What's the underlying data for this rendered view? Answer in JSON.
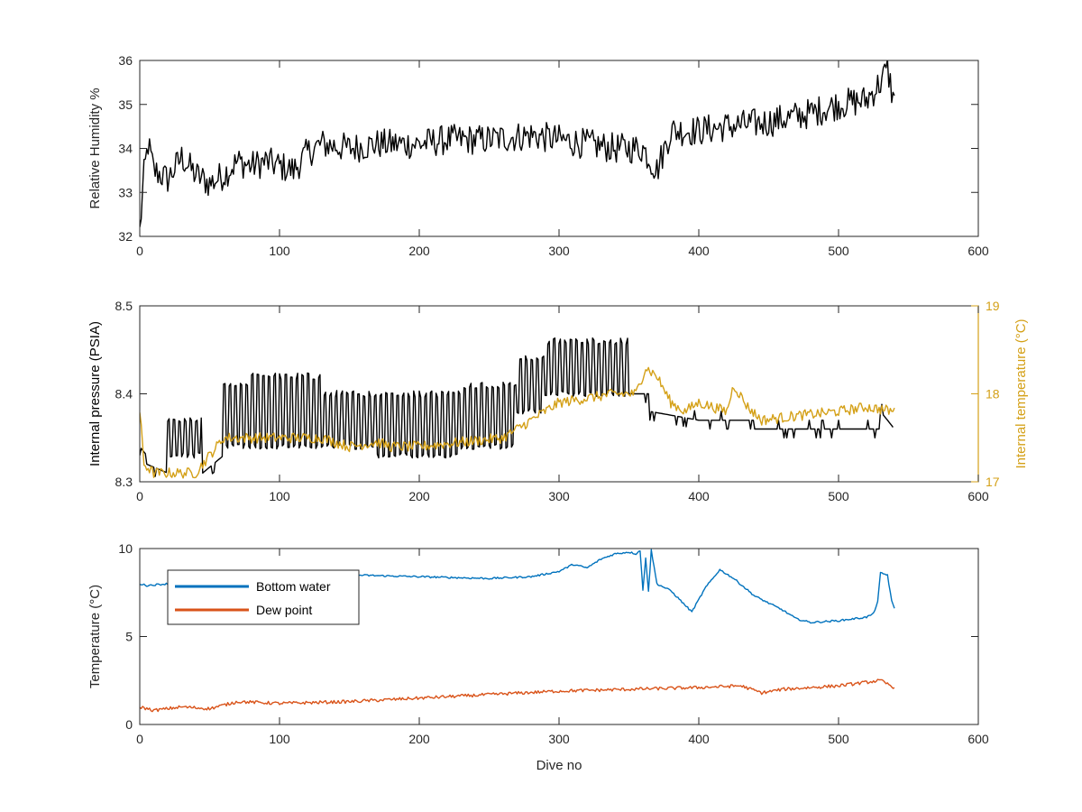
{
  "chart_data": [
    {
      "type": "line",
      "xlabel": "",
      "ylabel": "Relative Humidity %",
      "xlim": [
        0,
        600
      ],
      "ylim": [
        32,
        36
      ],
      "xticks": [
        0,
        100,
        200,
        300,
        400,
        500,
        600
      ],
      "yticks": [
        32,
        33,
        34,
        35,
        36
      ],
      "grid": false,
      "series": [
        {
          "name": "",
          "color": "#000000",
          "noise": 0.35,
          "knots": [
            [
              0,
              32.1
            ],
            [
              3,
              33.4
            ],
            [
              6,
              34.1
            ],
            [
              10,
              33.5
            ],
            [
              20,
              33.3
            ],
            [
              30,
              33.8
            ],
            [
              40,
              33.4
            ],
            [
              50,
              33.2
            ],
            [
              60,
              33.4
            ],
            [
              70,
              33.7
            ],
            [
              80,
              33.6
            ],
            [
              90,
              33.7
            ],
            [
              100,
              33.6
            ],
            [
              110,
              33.5
            ],
            [
              120,
              33.9
            ],
            [
              130,
              34.1
            ],
            [
              150,
              34.0
            ],
            [
              170,
              34.1
            ],
            [
              200,
              34.1
            ],
            [
              220,
              34.2
            ],
            [
              250,
              34.2
            ],
            [
              280,
              34.3
            ],
            [
              300,
              34.2
            ],
            [
              320,
              34.1
            ],
            [
              340,
              34.0
            ],
            [
              360,
              34.0
            ],
            [
              370,
              33.5
            ],
            [
              380,
              34.4
            ],
            [
              400,
              34.4
            ],
            [
              420,
              34.5
            ],
            [
              450,
              34.6
            ],
            [
              480,
              34.8
            ],
            [
              500,
              35.0
            ],
            [
              520,
              35.1
            ],
            [
              530,
              35.5
            ],
            [
              535,
              35.8
            ],
            [
              540,
              35.0
            ]
          ]
        }
      ]
    },
    {
      "type": "line",
      "xlabel": "",
      "ylabel": "Internal pressure (PSIA)",
      "y2label": "Internal temperature (°C)",
      "xlim": [
        0,
        600
      ],
      "ylim": [
        8.3,
        8.5
      ],
      "y2lim": [
        17,
        19
      ],
      "xticks": [
        0,
        100,
        200,
        300,
        400,
        500,
        600
      ],
      "yticks": [
        8.3,
        8.4,
        8.5
      ],
      "y2ticks": [
        17,
        18,
        19
      ],
      "grid": false,
      "series": [
        {
          "name": "",
          "axis": "left",
          "color": "#000000",
          "noise": 0.003,
          "segments": [
            {
              "from": 0,
              "to": 5,
              "lo": 8.34,
              "hi": 8.34,
              "base": [
                8.34,
                8.33
              ]
            },
            {
              "from": 5,
              "to": 20,
              "lo": 8.31,
              "hi": 8.32,
              "base": [
                8.32,
                8.31
              ]
            },
            {
              "from": 20,
              "to": 45,
              "lo": 8.33,
              "hi": 8.37,
              "base": [
                8.33,
                8.37
              ]
            },
            {
              "from": 45,
              "to": 60,
              "lo": 8.32,
              "hi": 8.32,
              "base": [
                8.31,
                8.33
              ]
            },
            {
              "from": 60,
              "to": 80,
              "lo": 8.34,
              "hi": 8.41,
              "base": [
                8.34,
                8.41
              ]
            },
            {
              "from": 80,
              "to": 130,
              "lo": 8.34,
              "hi": 8.42,
              "base": [
                8.34,
                8.42
              ]
            },
            {
              "from": 130,
              "to": 170,
              "lo": 8.34,
              "hi": 8.4,
              "base": [
                8.34,
                8.4
              ]
            },
            {
              "from": 170,
              "to": 230,
              "lo": 8.33,
              "hi": 8.4,
              "base": [
                8.33,
                8.4
              ]
            },
            {
              "from": 230,
              "to": 270,
              "lo": 8.34,
              "hi": 8.41,
              "base": [
                8.34,
                8.41
              ]
            },
            {
              "from": 270,
              "to": 290,
              "lo": 8.38,
              "hi": 8.44,
              "base": [
                8.38,
                8.44
              ]
            },
            {
              "from": 290,
              "to": 350,
              "lo": 8.4,
              "hi": 8.46,
              "base": [
                8.4,
                8.46
              ]
            },
            {
              "from": 350,
              "to": 365,
              "lo": 8.4,
              "hi": 8.4,
              "base": [
                8.4,
                8.4
              ]
            },
            {
              "from": 365,
              "to": 400,
              "lo": 8.38,
              "hi": 8.38,
              "base": [
                8.38,
                8.37
              ]
            },
            {
              "from": 400,
              "to": 440,
              "lo": 8.37,
              "hi": 8.38,
              "base": [
                8.37,
                8.37
              ]
            },
            {
              "from": 440,
              "to": 530,
              "lo": 8.36,
              "hi": 8.36,
              "base": [
                8.36,
                8.36
              ]
            },
            {
              "from": 530,
              "to": 540,
              "lo": 8.38,
              "hi": 8.38,
              "base": [
                8.38,
                8.36
              ]
            }
          ]
        },
        {
          "name": "",
          "axis": "right",
          "color": "#D4A017",
          "noise": 0.06,
          "knots": [
            [
              0,
              17.8
            ],
            [
              3,
              17.2
            ],
            [
              10,
              17.1
            ],
            [
              20,
              17.1
            ],
            [
              40,
              17.1
            ],
            [
              50,
              17.3
            ],
            [
              60,
              17.5
            ],
            [
              80,
              17.5
            ],
            [
              100,
              17.5
            ],
            [
              130,
              17.5
            ],
            [
              150,
              17.4
            ],
            [
              170,
              17.45
            ],
            [
              180,
              17.4
            ],
            [
              200,
              17.4
            ],
            [
              230,
              17.45
            ],
            [
              260,
              17.5
            ],
            [
              280,
              17.7
            ],
            [
              290,
              17.8
            ],
            [
              300,
              17.9
            ],
            [
              320,
              17.95
            ],
            [
              340,
              18.0
            ],
            [
              355,
              18.0
            ],
            [
              362,
              18.3
            ],
            [
              370,
              18.2
            ],
            [
              380,
              17.9
            ],
            [
              390,
              17.8
            ],
            [
              400,
              17.9
            ],
            [
              420,
              17.8
            ],
            [
              425,
              18.1
            ],
            [
              435,
              17.85
            ],
            [
              445,
              17.7
            ],
            [
              470,
              17.75
            ],
            [
              500,
              17.8
            ],
            [
              520,
              17.85
            ],
            [
              540,
              17.8
            ]
          ]
        }
      ]
    },
    {
      "type": "line",
      "xlabel": "Dive no",
      "ylabel": "Temperature (°C)",
      "xlim": [
        0,
        600
      ],
      "ylim": [
        0,
        10
      ],
      "xticks": [
        0,
        100,
        200,
        300,
        400,
        500,
        600
      ],
      "yticks": [
        0,
        5,
        10
      ],
      "grid": false,
      "legend": "top-left",
      "series": [
        {
          "name": "Bottom water",
          "color": "#0072BD",
          "noise": 0.05,
          "knots": [
            [
              0,
              8.0
            ],
            [
              5,
              7.9
            ],
            [
              20,
              8.0
            ],
            [
              50,
              8.5
            ],
            [
              70,
              8.6
            ],
            [
              100,
              8.4
            ],
            [
              150,
              8.5
            ],
            [
              200,
              8.4
            ],
            [
              250,
              8.3
            ],
            [
              280,
              8.4
            ],
            [
              300,
              8.7
            ],
            [
              310,
              9.1
            ],
            [
              320,
              8.9
            ],
            [
              330,
              9.4
            ],
            [
              340,
              9.7
            ],
            [
              350,
              9.8
            ],
            [
              355,
              9.7
            ],
            [
              358,
              9.9
            ],
            [
              360,
              7.6
            ],
            [
              362,
              9.5
            ],
            [
              364,
              7.6
            ],
            [
              366,
              9.9
            ],
            [
              370,
              8.0
            ],
            [
              380,
              7.6
            ],
            [
              395,
              6.4
            ],
            [
              405,
              7.8
            ],
            [
              415,
              8.8
            ],
            [
              425,
              8.3
            ],
            [
              440,
              7.3
            ],
            [
              460,
              6.5
            ],
            [
              470,
              6.0
            ],
            [
              480,
              5.8
            ],
            [
              500,
              5.9
            ],
            [
              520,
              6.1
            ],
            [
              525,
              6.3
            ],
            [
              528,
              7.0
            ],
            [
              530,
              8.6
            ],
            [
              535,
              8.5
            ],
            [
              538,
              7.0
            ],
            [
              540,
              6.6
            ]
          ]
        },
        {
          "name": "Dew point",
          "color": "#D95319",
          "noise": 0.09,
          "knots": [
            [
              0,
              1.0
            ],
            [
              10,
              0.8
            ],
            [
              30,
              1.0
            ],
            [
              50,
              0.9
            ],
            [
              70,
              1.3
            ],
            [
              100,
              1.2
            ],
            [
              150,
              1.3
            ],
            [
              200,
              1.5
            ],
            [
              250,
              1.7
            ],
            [
              300,
              1.9
            ],
            [
              350,
              2.0
            ],
            [
              400,
              2.1
            ],
            [
              430,
              2.2
            ],
            [
              445,
              1.8
            ],
            [
              460,
              2.0
            ],
            [
              500,
              2.2
            ],
            [
              530,
              2.5
            ],
            [
              540,
              2.1
            ]
          ]
        }
      ]
    }
  ]
}
